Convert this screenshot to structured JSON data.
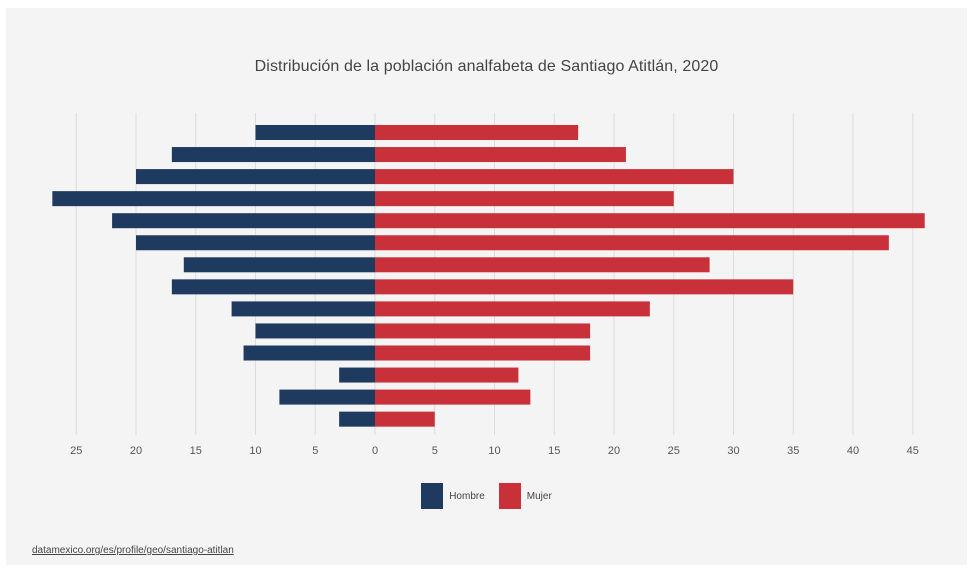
{
  "title": "Distribución de la población analfabeta de Santiago Atitlán, 2020",
  "source_link": "datamexico.org/es/profile/geo/santiago-atitlan",
  "colors": {
    "hombre": "#1e3a5f",
    "mujer": "#c8303a"
  },
  "legend": [
    {
      "label": "Hombre",
      "color": "#1e3a5f"
    },
    {
      "label": "Mujer",
      "color": "#c8303a"
    }
  ],
  "chart_data": {
    "type": "bar",
    "orientation": "horizontal-diverging",
    "series": [
      {
        "name": "Hombre",
        "values": [
          10,
          17,
          20,
          27,
          22,
          20,
          16,
          17,
          12,
          10,
          11,
          3,
          8,
          3
        ]
      },
      {
        "name": "Mujer",
        "values": [
          17,
          21,
          30,
          25,
          46,
          43,
          28,
          35,
          23,
          18,
          18,
          12,
          13,
          5
        ]
      }
    ],
    "x_tick_labels": [
      "25",
      "20",
      "15",
      "10",
      "5",
      "0",
      "5",
      "10",
      "15",
      "20",
      "25",
      "30",
      "35",
      "40",
      "45"
    ],
    "xlim": [
      -27,
      46
    ],
    "grid": true,
    "legend_position": "bottom"
  }
}
